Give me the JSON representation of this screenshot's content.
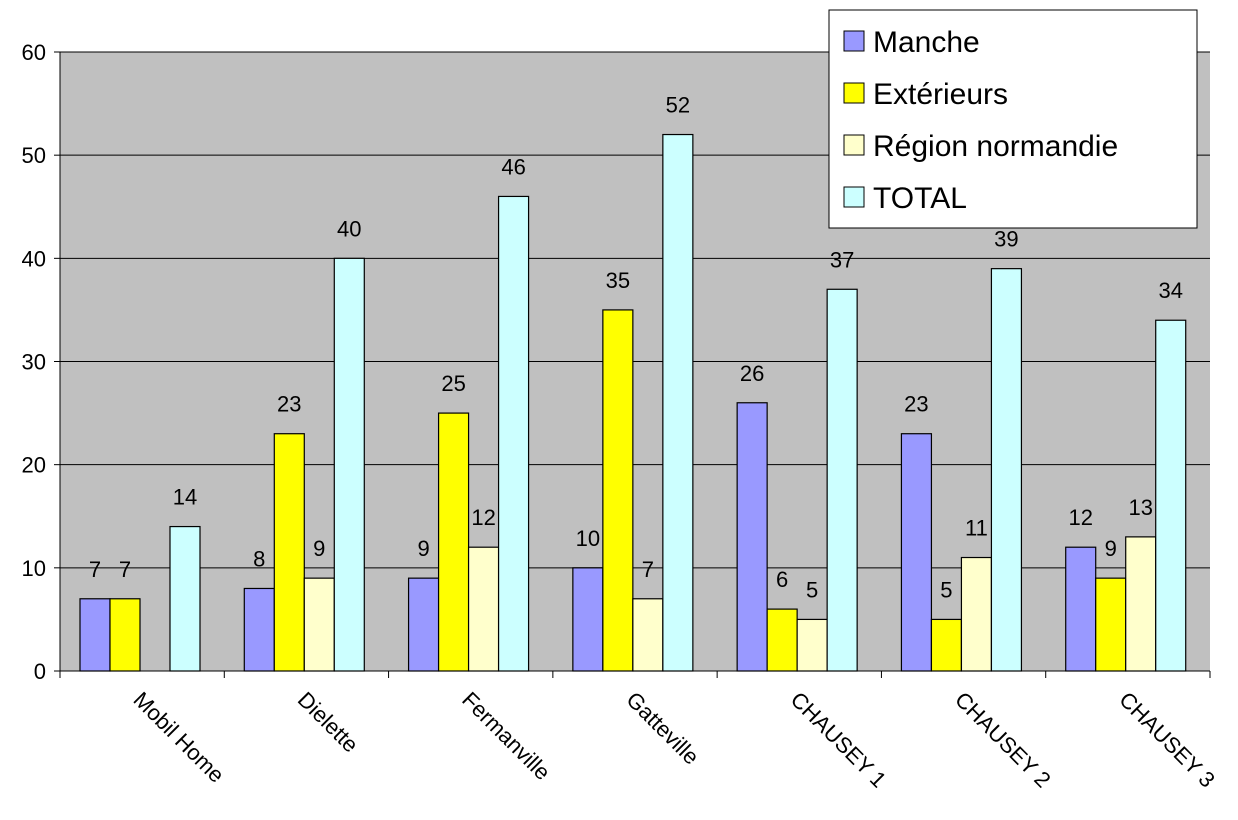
{
  "chart_data": {
    "type": "bar",
    "title": "",
    "xlabel": "",
    "ylabel": "",
    "ylim": [
      0,
      60
    ],
    "yticks": [
      0,
      10,
      20,
      30,
      40,
      50,
      60
    ],
    "grid": true,
    "legend_position": "top-right",
    "categories": [
      "Mobil Home",
      "Dielette",
      "Fermanville",
      "Gatteville",
      "CHAUSEY 1",
      "CHAUSEY 2",
      "CHAUSEY 3"
    ],
    "series": [
      {
        "name": "Manche",
        "color": "#9999ff",
        "values": [
          7,
          8,
          9,
          10,
          26,
          23,
          12
        ]
      },
      {
        "name": "Extérieurs",
        "color": "#ffff00",
        "values": [
          7,
          23,
          25,
          35,
          6,
          5,
          9
        ]
      },
      {
        "name": "Région normandie",
        "color": "#ffffcc",
        "values": [
          null,
          9,
          12,
          7,
          5,
          11,
          13
        ]
      },
      {
        "name": "TOTAL",
        "color": "#ccffff",
        "values": [
          14,
          40,
          46,
          52,
          37,
          39,
          34
        ]
      }
    ],
    "plot_background": "#c0c0c0"
  }
}
